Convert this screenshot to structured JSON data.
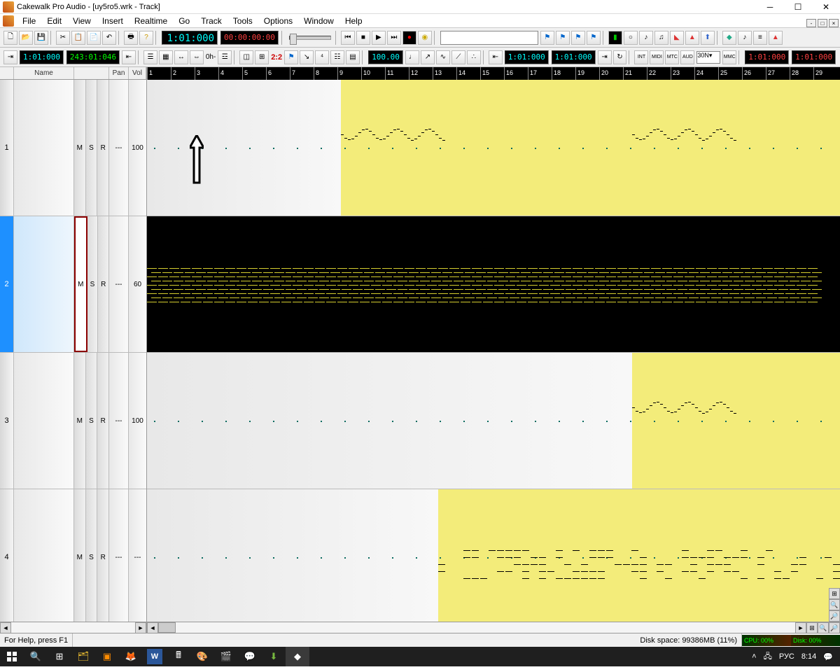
{
  "title": "Cakewalk Pro Audio - [uy5ro5.wrk - Track]",
  "menu": [
    "File",
    "Edit",
    "View",
    "Insert",
    "Realtime",
    "Go",
    "Track",
    "Tools",
    "Options",
    "Window",
    "Help"
  ],
  "counters": {
    "now_cy": "1:01:000",
    "end_gr": "243:01:046",
    "big_cy": "1:01:000",
    "big_rd": "00:00:00:00",
    "tempo": "100.00",
    "from_cy": "1:01:000",
    "thru_cy": "1:01:000",
    "right_rd1": "1:01:000",
    "right_rd2": "1:01:000"
  },
  "timesig": "2:2",
  "looplabel": "0h-",
  "sync_combo": "30N▾",
  "headers": {
    "name": "Name",
    "pan": "Pan",
    "vol": "Vol"
  },
  "tracks": [
    {
      "num": "1",
      "vol": "100",
      "pan": "---",
      "selected": false,
      "clipStartPct": 28,
      "dark": false
    },
    {
      "num": "2",
      "vol": "60",
      "pan": "---",
      "selected": true,
      "clipStartPct": 0,
      "dark": true
    },
    {
      "num": "3",
      "vol": "100",
      "pan": "---",
      "selected": false,
      "clipStartPct": 70,
      "dark": false
    },
    {
      "num": "4",
      "vol": "---",
      "pan": "---",
      "selected": false,
      "clipStartPct": 42,
      "dark": false
    }
  ],
  "ruler": {
    "start": 1,
    "end": 29,
    "pxPerBar": 34
  },
  "status": {
    "help": "For Help, press F1",
    "disk": "Disk space: 99386MB (11%)",
    "cpu": "CPU: 00%",
    "dsk": "Disk: 00%"
  },
  "tray": {
    "lang": "РУС",
    "time": "8:14"
  },
  "colors": {
    "clip": "#f3ec7a",
    "darklane": "#000000",
    "midinote": "#d6cf2f"
  }
}
